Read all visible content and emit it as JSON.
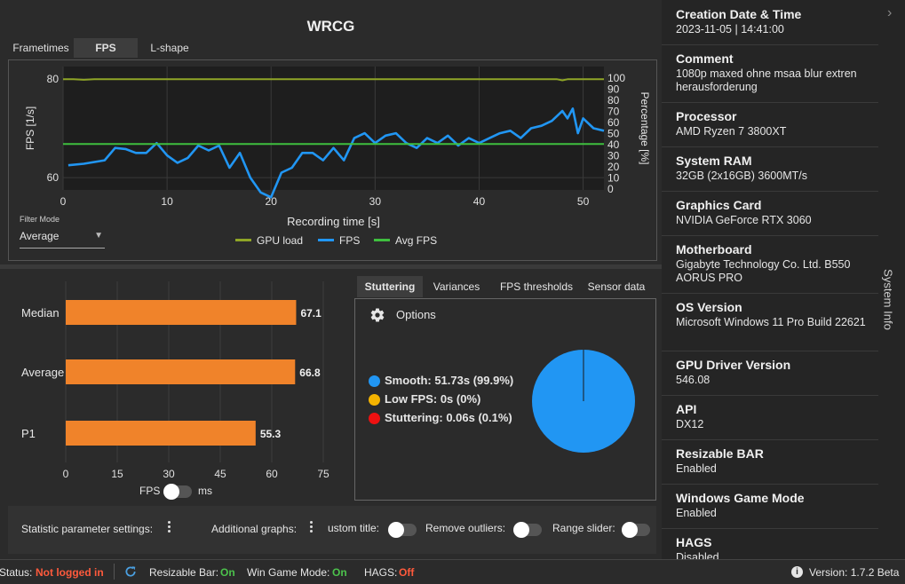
{
  "app": {
    "title": "WRCG"
  },
  "tabs": [
    {
      "label": "Frametimes"
    },
    {
      "label": "FPS"
    },
    {
      "label": "L-shape"
    }
  ],
  "filter": {
    "label": "Filter Mode",
    "value": "Average"
  },
  "colors": {
    "gpu_load": "#8fa526",
    "fps": "#2196f3",
    "avg_fps": "#3fbf3f",
    "bar": "#f0832a",
    "smooth": "#2196f3",
    "low_fps": "#f5b400",
    "stuttering": "#ee1111"
  },
  "chart_data": [
    {
      "type": "line",
      "xlabel": "Recording time [s]",
      "ylabel": "FPS [1/s]",
      "y2label": "Percentage [%]",
      "xlim": [
        0,
        52
      ],
      "xticks": [
        0,
        10,
        20,
        30,
        40,
        50
      ],
      "yticks": [
        60,
        80
      ],
      "y2lim": [
        0,
        100
      ],
      "y2ticks": [
        0,
        10,
        20,
        30,
        40,
        50,
        60,
        70,
        80,
        90,
        100
      ],
      "legend": [
        "GPU load",
        "FPS",
        "Avg FPS"
      ],
      "series": [
        {
          "name": "GPU load",
          "axis": "y2",
          "x": [
            0,
            1,
            2,
            3,
            5,
            10,
            20,
            30,
            40,
            47.5,
            48,
            48.5,
            50,
            52
          ],
          "y": [
            99,
            99,
            98.5,
            99,
            99,
            99,
            99,
            99,
            99,
            99,
            98,
            99,
            99,
            99
          ]
        },
        {
          "name": "FPS",
          "axis": "y",
          "x": [
            0.5,
            2,
            4,
            5,
            6,
            7,
            8,
            9,
            10,
            11,
            12,
            13,
            14,
            15,
            16,
            17,
            18,
            19,
            20,
            21,
            22,
            23,
            24,
            25,
            26,
            27,
            28,
            29,
            30,
            31,
            32,
            33,
            34,
            35,
            36,
            37,
            38,
            39,
            40,
            41,
            42,
            43,
            44,
            45,
            46,
            47,
            48,
            48.5,
            49,
            49.5,
            50,
            50.5,
            51,
            52
          ],
          "y": [
            62.5,
            62.8,
            63.5,
            66,
            65.8,
            65,
            65,
            67,
            64.5,
            63,
            64,
            66.5,
            65.5,
            66.5,
            62,
            65,
            60,
            57,
            56,
            61,
            62,
            65,
            65,
            63.5,
            66,
            63.5,
            68,
            69,
            67,
            68.5,
            69,
            67,
            66,
            68,
            67,
            68.5,
            66.5,
            68,
            67,
            68,
            69,
            69.5,
            68,
            70,
            70.5,
            71.5,
            73.5,
            72,
            74,
            69,
            72,
            71,
            70,
            69.5
          ]
        },
        {
          "name": "Avg FPS",
          "axis": "y",
          "x": [
            0,
            52
          ],
          "y": [
            66.8,
            66.8
          ]
        }
      ]
    },
    {
      "type": "bar",
      "categories": [
        "Median",
        "Average",
        "P1"
      ],
      "values": [
        67.1,
        66.8,
        55.3
      ],
      "xlim": [
        0,
        75
      ],
      "xticks": [
        0,
        15,
        30,
        45,
        60,
        75
      ]
    },
    {
      "type": "pie",
      "labels": [
        "Smooth",
        "Low FPS",
        "Stuttering"
      ],
      "values": [
        99.9,
        0,
        0.1
      ]
    }
  ],
  "fps_toggle": {
    "left": "FPS",
    "right": "ms"
  },
  "stutter_tabs": [
    {
      "label": "Stuttering"
    },
    {
      "label": "Variances"
    },
    {
      "label": "FPS thresholds"
    },
    {
      "label": "Sensor data"
    }
  ],
  "options": {
    "label": "Options"
  },
  "stutter_legend": [
    {
      "text": "Smooth:  51.73s (99.9%)"
    },
    {
      "text": "Low FPS:  0s (0%)"
    },
    {
      "text": "Stuttering:  0.06s (0.1%)"
    }
  ],
  "settings": {
    "statistic": "Statistic parameter settings:",
    "additional": "Additional graphs:",
    "custom_title": "ustom title:",
    "remove_outliers": "Remove outliers:",
    "range_slider": "Range slider:"
  },
  "status": {
    "status_label": "Status:",
    "status_value": "Not logged in",
    "resizable_label": "Resizable Bar:",
    "resizable_value": "On",
    "wgm_label": "Win Game Mode:",
    "wgm_value": "On",
    "hags_label": "HAGS:",
    "hags_value": "Off",
    "version": "Version:  1.7.2 Beta"
  },
  "sidebar": {
    "label": "System Info",
    "items": [
      {
        "title": "Creation Date & Time",
        "value": "2023-11-05  |  14:41:00"
      },
      {
        "title": "Comment",
        "value": "1080p maxed ohne msaa blur extren herausforderung"
      },
      {
        "title": "Processor",
        "value": "AMD Ryzen 7 3800XT"
      },
      {
        "title": "System RAM",
        "value": "32GB (2x16GB) 3600MT/s"
      },
      {
        "title": "Graphics Card",
        "value": "NVIDIA GeForce RTX 3060"
      },
      {
        "title": "Motherboard",
        "value": "Gigabyte Technology Co. Ltd. B550 AORUS PRO"
      },
      {
        "title": "OS Version",
        "value": "Microsoft Windows 11 Pro Build 22621"
      },
      {
        "title": "GPU Driver Version",
        "value": "546.08"
      },
      {
        "title": "API",
        "value": "DX12"
      },
      {
        "title": "Resizable BAR",
        "value": "Enabled"
      },
      {
        "title": "Windows Game Mode",
        "value": "Enabled"
      },
      {
        "title": "HAGS",
        "value": "Disabled"
      }
    ]
  }
}
